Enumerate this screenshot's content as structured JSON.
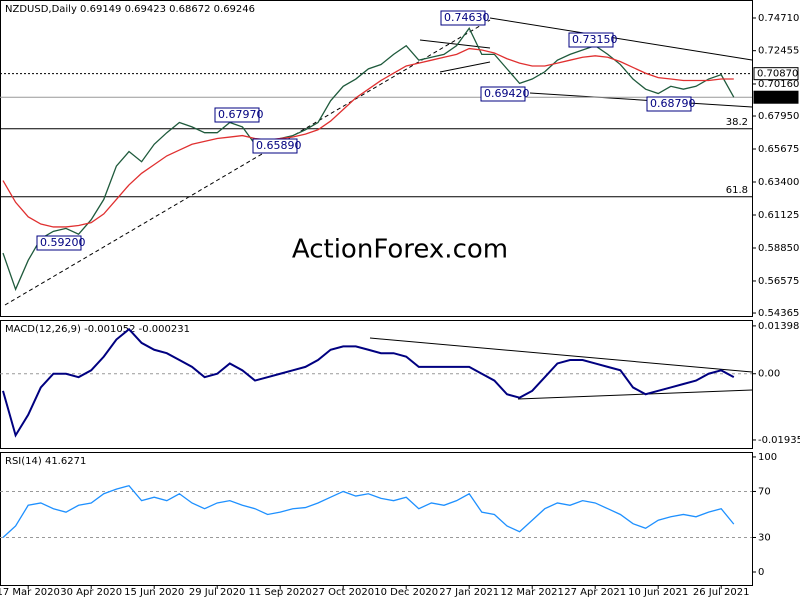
{
  "chart_data": [
    {
      "type": "line",
      "title": "NZDUSD,Daily 0.69149 0.69423 0.68672 0.69246",
      "watermark": "ActionForex.com",
      "categories": [
        null,
        null,
        "17 Mar 2020",
        null,
        null,
        null,
        null,
        "30 Apr 2020",
        null,
        null,
        null,
        null,
        "15 Jun 2020",
        null,
        null,
        null,
        null,
        "29 Jul 2020",
        null,
        null,
        null,
        null,
        "11 Sep 2020",
        null,
        null,
        null,
        null,
        "27 Oct 2020",
        null,
        null,
        null,
        null,
        "10 Dec 2020",
        null,
        null,
        null,
        null,
        "27 Jan 2021",
        null,
        null,
        null,
        null,
        "12 Mar 2021",
        null,
        null,
        null,
        null,
        "27 Apr 2021",
        null,
        null,
        null,
        null,
        "10 Jun 2021",
        null,
        null,
        null,
        null,
        "26 Jul 2021",
        null
      ],
      "series": [
        {
          "color": "#1f5a3c",
          "values": [
            0.585,
            0.56,
            0.58,
            0.595,
            0.6,
            0.602,
            0.598,
            0.608,
            0.622,
            0.645,
            0.655,
            0.648,
            0.66,
            0.668,
            0.675,
            0.672,
            0.668,
            0.668,
            0.675,
            0.672,
            0.66,
            0.662,
            0.664,
            0.666,
            0.67,
            0.675,
            0.69,
            0.7,
            0.705,
            0.712,
            0.715,
            0.722,
            0.728,
            0.718,
            0.72,
            0.722,
            0.728,
            0.74,
            0.722,
            0.722,
            0.712,
            0.702,
            0.705,
            0.71,
            0.718,
            0.722,
            0.725,
            0.728,
            0.722,
            0.715,
            0.705,
            0.698,
            0.695,
            0.7,
            0.698,
            0.7,
            0.705,
            0.708,
            0.6925
          ]
        },
        {
          "color": "#e03030",
          "values": [
            0.635,
            0.62,
            0.61,
            0.605,
            0.603,
            0.603,
            0.604,
            0.606,
            0.612,
            0.622,
            0.632,
            0.64,
            0.646,
            0.652,
            0.656,
            0.66,
            0.662,
            0.664,
            0.665,
            0.666,
            0.664,
            0.663,
            0.664,
            0.665,
            0.667,
            0.67,
            0.676,
            0.684,
            0.692,
            0.698,
            0.704,
            0.709,
            0.714,
            0.716,
            0.718,
            0.72,
            0.722,
            0.726,
            0.725,
            0.723,
            0.719,
            0.716,
            0.714,
            0.714,
            0.716,
            0.718,
            0.72,
            0.721,
            0.72,
            0.717,
            0.713,
            0.709,
            0.706,
            0.705,
            0.704,
            0.704,
            0.704,
            0.705,
            0.705
          ]
        }
      ],
      "ylim": [
        0.5416,
        0.7595
      ],
      "yticks": [
        {
          "value": 0.7471,
          "label": "0.74710"
        },
        {
          "value": 0.72455,
          "label": "0.72455"
        },
        {
          "value": 0.7016,
          "label": "0.70160"
        },
        {
          "value": 0.6795,
          "label": "0.67950"
        },
        {
          "value": 0.65675,
          "label": "0.65675"
        },
        {
          "value": 0.634,
          "label": "0.63400"
        },
        {
          "value": 0.61125,
          "label": "0.61125"
        },
        {
          "value": 0.5885,
          "label": "0.58850"
        },
        {
          "value": 0.56575,
          "label": "0.56575"
        },
        {
          "value": 0.54365,
          "label": "0.54365"
        }
      ],
      "price_labels": [
        {
          "value": 0.7087,
          "label": "0.70870"
        },
        {
          "value": 0.69246,
          "label": "0.69246"
        }
      ],
      "fib_levels": [
        {
          "value": 0.6707,
          "label": "38.2"
        },
        {
          "value": 0.6238,
          "label": "61.8"
        }
      ],
      "annotations": [
        "0.74630",
        "0.73150",
        "0.69420",
        "0.68790",
        "0.67970",
        "0.65890",
        "0.59200"
      ]
    },
    {
      "type": "line",
      "title": "MACD(12,26,9) -0.001052 -0.000231",
      "series": [
        {
          "color": "#000080",
          "values": [
            -0.005,
            -0.018,
            -0.012,
            -0.004,
            0.0,
            0.0,
            -0.001,
            0.001,
            0.005,
            0.01,
            0.013,
            0.009,
            0.007,
            0.006,
            0.004,
            0.002,
            -0.001,
            0.0,
            0.003,
            0.001,
            -0.002,
            -0.001,
            0.0,
            0.001,
            0.002,
            0.004,
            0.007,
            0.008,
            0.008,
            0.007,
            0.006,
            0.006,
            0.005,
            0.002,
            0.002,
            0.002,
            0.002,
            0.002,
            0.0,
            -0.002,
            -0.006,
            -0.007,
            -0.005,
            -0.001,
            0.003,
            0.004,
            0.004,
            0.003,
            0.002,
            0.001,
            -0.004,
            -0.006,
            -0.005,
            -0.004,
            -0.003,
            -0.002,
            0.0,
            0.001,
            -0.001
          ]
        }
      ],
      "ylim": [
        -0.0217,
        0.0157
      ],
      "yticks": [
        0.01398,
        {
          "value": 0,
          "label": "0.00"
        },
        -0.019352
      ]
    },
    {
      "type": "line",
      "title": "RSI(14) 41.6271",
      "series": [
        {
          "color": "#1e90ff",
          "values": [
            30,
            40,
            58,
            60,
            55,
            52,
            58,
            60,
            68,
            72,
            75,
            62,
            65,
            62,
            68,
            60,
            55,
            60,
            62,
            58,
            55,
            50,
            52,
            55,
            56,
            60,
            65,
            70,
            66,
            68,
            64,
            62,
            65,
            55,
            60,
            58,
            62,
            68,
            52,
            50,
            40,
            35,
            45,
            55,
            60,
            58,
            62,
            60,
            55,
            50,
            42,
            38,
            45,
            48,
            50,
            48,
            52,
            55,
            41.6271
          ]
        }
      ],
      "ylim": [
        -11.3,
        104.3
      ],
      "yticks": [
        100,
        70,
        30,
        0
      ]
    }
  ]
}
